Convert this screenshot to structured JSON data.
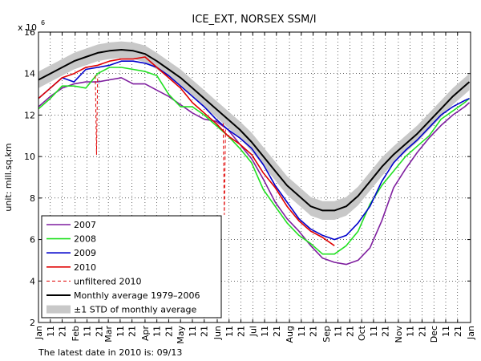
{
  "chart_data": {
    "type": "line",
    "title": "ICE_EXT, NORSEX SSM/I",
    "y_label": "unit: mill.sq.km",
    "scale_label": "x 10",
    "scale_exponent": "6",
    "footnote": "The latest date in 2010 is: 09/13",
    "grid": true,
    "legend": "lower left",
    "xlim": [
      1,
      366
    ],
    "ylim": [
      2,
      16
    ],
    "yticks": [
      2,
      4,
      6,
      8,
      10,
      12,
      14,
      16
    ],
    "xticks": [
      {
        "value": 1,
        "label": "Jan"
      },
      11,
      21,
      {
        "value": 32,
        "label": "Feb"
      },
      {
        "value": 42,
        "label": "11"
      },
      {
        "value": 52,
        "label": "21"
      },
      {
        "value": 60,
        "label": "Mar"
      },
      {
        "value": 70,
        "label": "11"
      },
      {
        "value": 80,
        "label": "21"
      },
      {
        "value": 91,
        "label": "Apr"
      },
      {
        "value": 101,
        "label": "11"
      },
      {
        "value": 111,
        "label": "21"
      },
      {
        "value": 121,
        "label": "May"
      },
      {
        "value": 131,
        "label": "11"
      },
      {
        "value": 141,
        "label": "21"
      },
      {
        "value": 152,
        "label": "Jun"
      },
      {
        "value": 162,
        "label": "11"
      },
      {
        "value": 172,
        "label": "21"
      },
      {
        "value": 182,
        "label": "Jul"
      },
      {
        "value": 192,
        "label": "11"
      },
      {
        "value": 202,
        "label": "21"
      },
      {
        "value": 213,
        "label": "Aug"
      },
      {
        "value": 223,
        "label": "11"
      },
      {
        "value": 233,
        "label": "21"
      },
      {
        "value": 244,
        "label": "Sep"
      },
      {
        "value": 254,
        "label": "11"
      },
      {
        "value": 264,
        "label": "21"
      },
      {
        "value": 274,
        "label": "Oct"
      },
      {
        "value": 284,
        "label": "11"
      },
      {
        "value": 294,
        "label": "21"
      },
      {
        "value": 305,
        "label": "Nov"
      },
      {
        "value": 315,
        "label": "11"
      },
      {
        "value": 325,
        "label": "21"
      },
      {
        "value": 335,
        "label": "Dec"
      },
      {
        "value": 345,
        "label": "11"
      },
      {
        "value": 355,
        "label": "21"
      },
      {
        "value": 366,
        "label": "Jan"
      }
    ],
    "x": [
      1,
      11,
      21,
      31,
      41,
      51,
      61,
      71,
      81,
      91,
      101,
      111,
      121,
      131,
      141,
      151,
      161,
      171,
      181,
      191,
      201,
      211,
      221,
      231,
      241,
      251,
      261,
      271,
      281,
      291,
      301,
      311,
      321,
      331,
      341,
      351,
      361,
      365
    ],
    "band": {
      "name": "±1 STD of monthly average",
      "color": "#c8c8c8",
      "std": [
        0.4,
        0.4,
        0.4,
        0.4,
        0.4,
        0.4,
        0.4,
        0.4,
        0.4,
        0.4,
        0.4,
        0.4,
        0.4,
        0.4,
        0.4,
        0.4,
        0.4,
        0.4,
        0.45,
        0.45,
        0.45,
        0.45,
        0.45,
        0.45,
        0.45,
        0.45,
        0.45,
        0.45,
        0.45,
        0.45,
        0.4,
        0.4,
        0.4,
        0.4,
        0.4,
        0.4,
        0.4,
        0.4
      ]
    },
    "series": [
      {
        "name": "2007",
        "color": "#7f1f9f",
        "values": [
          12.4,
          12.9,
          13.3,
          13.5,
          13.6,
          13.6,
          13.7,
          13.8,
          13.5,
          13.5,
          13.2,
          12.9,
          12.5,
          12.1,
          11.8,
          11.7,
          11.3,
          10.6,
          9.9,
          8.9,
          7.8,
          7.0,
          6.4,
          5.7,
          5.1,
          4.9,
          4.8,
          5.0,
          5.6,
          6.9,
          8.5,
          9.4,
          10.2,
          10.9,
          11.5,
          12.0,
          12.4,
          12.6
        ]
      },
      {
        "name": "2008",
        "color": "#22e022",
        "values": [
          12.3,
          12.8,
          13.4,
          13.4,
          13.3,
          14.0,
          14.3,
          14.3,
          14.2,
          14.1,
          13.9,
          13.0,
          12.4,
          12.4,
          12.0,
          11.5,
          11.0,
          10.4,
          9.7,
          8.4,
          7.6,
          6.8,
          6.2,
          5.8,
          5.3,
          5.3,
          5.7,
          6.4,
          7.7,
          8.6,
          9.3,
          10.0,
          10.5,
          11.0,
          11.8,
          12.2,
          12.6,
          12.8
        ]
      },
      {
        "name": "2009",
        "color": "#0000cc",
        "values": [
          12.8,
          13.3,
          13.8,
          13.6,
          14.2,
          14.3,
          14.4,
          14.6,
          14.6,
          14.5,
          14.3,
          13.9,
          13.4,
          12.9,
          12.4,
          11.8,
          11.3,
          10.9,
          10.4,
          9.6,
          8.6,
          7.8,
          7.0,
          6.5,
          6.2,
          6.0,
          6.2,
          6.8,
          7.6,
          8.8,
          9.7,
          10.3,
          10.8,
          11.4,
          12.0,
          12.4,
          12.7,
          12.8
        ]
      },
      {
        "name": "2010",
        "color": "#e00000",
        "values": [
          12.8,
          13.3,
          13.8,
          14.0,
          14.3,
          14.4,
          14.6,
          14.7,
          14.7,
          14.8,
          14.3,
          13.8,
          13.3,
          12.6,
          12.1,
          11.6,
          11.0,
          10.6,
          10.1,
          9.2,
          8.5,
          7.6,
          6.9,
          6.4,
          6.1,
          5.7,
          null,
          null,
          null,
          null,
          null,
          null,
          null,
          null,
          null,
          null,
          null,
          null
        ]
      },
      {
        "name": "unfiltered 2010",
        "color": "#e00000",
        "dash": true,
        "x": [
          49,
          50,
          51,
          155,
          157,
          158,
          159
        ],
        "values": [
          13.9,
          10.1,
          13.9,
          null,
          11.6,
          7.2,
          11.3
        ]
      },
      {
        "name": "Monthly average 1979–2006",
        "color": "#000000",
        "width": 2,
        "values": [
          13.7,
          14.0,
          14.3,
          14.6,
          14.8,
          15.0,
          15.1,
          15.15,
          15.1,
          14.95,
          14.6,
          14.2,
          13.8,
          13.3,
          12.8,
          12.3,
          11.8,
          11.3,
          10.7,
          10.0,
          9.3,
          8.6,
          8.1,
          7.6,
          7.4,
          7.4,
          7.6,
          8.1,
          8.8,
          9.5,
          10.1,
          10.6,
          11.1,
          11.7,
          12.3,
          12.9,
          13.4,
          13.6
        ]
      }
    ]
  }
}
